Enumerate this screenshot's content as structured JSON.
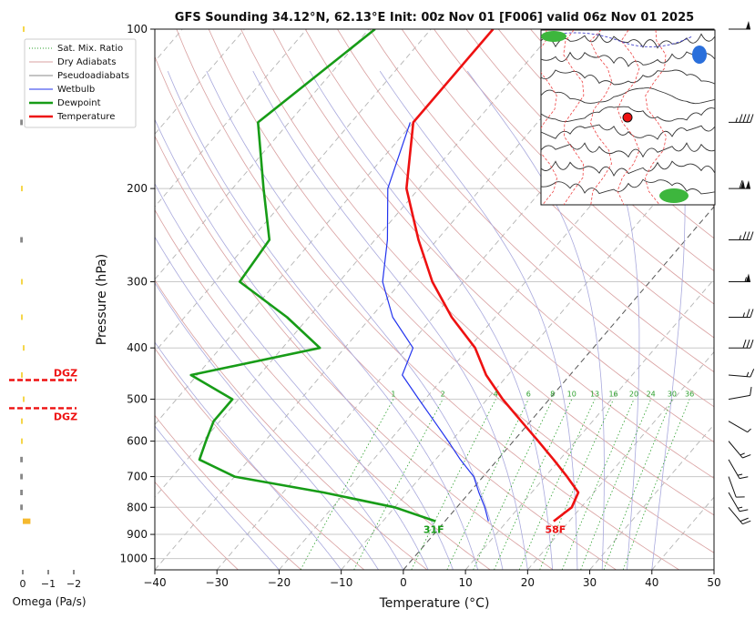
{
  "title": "GFS Sounding 34.12°N, 62.13°E Init: 00z Nov 01 [F006] valid 06z Nov 01 2025",
  "colors": {
    "temperature": "#ee1111",
    "dewpoint": "#179c17",
    "wetbulb": "#2233ee",
    "dry_adiabat": "#d9a0a0",
    "pseudoadiabat": "#a9a9dd",
    "mixing_ratio": "#2ca02c",
    "isotherm": "#b4b4b4",
    "dgz": "#ee1111",
    "omega": "#f5b92e"
  },
  "legend": {
    "items": [
      {
        "label": "Sat. Mix. Ratio",
        "style": "dotted",
        "color": "#2ca02c"
      },
      {
        "label": "Dry Adiabats",
        "style": "solid-thin",
        "color": "#d9a0a0"
      },
      {
        "label": "Pseudoadiabats",
        "style": "solid-thin",
        "color": "#8a8a8a"
      },
      {
        "label": "Wetbulb",
        "style": "solid",
        "color": "#2233ee"
      },
      {
        "label": "Dewpoint",
        "style": "thick",
        "color": "#179c17"
      },
      {
        "label": "Temperature",
        "style": "thick",
        "color": "#ee1111"
      }
    ]
  },
  "labels": {
    "surface_dewpoint": "31F",
    "surface_temperature": "58F",
    "dgz_top": "DGZ",
    "dgz_bottom": "DGZ",
    "omega_axis": "Omega (Pa/s)"
  },
  "omega_ticks": [
    "0",
    "−1",
    "−2"
  ],
  "mixing_ratio_labels": [
    "1",
    "2",
    "4",
    "6",
    "8",
    "10",
    "13",
    "16",
    "20",
    "24",
    "30",
    "36"
  ],
  "chart_data": {
    "type": "line",
    "xlabel": "Temperature (°C)",
    "ylabel": "Pressure (hPa)",
    "xlim": [
      -40,
      50
    ],
    "ylim": [
      1050,
      100
    ],
    "yscale": "log",
    "x_ticks": [
      -40,
      -30,
      -20,
      -10,
      0,
      10,
      20,
      30,
      40,
      50
    ],
    "x_tick_labels": [
      "−40",
      "−30",
      "−20",
      "−10",
      "0",
      "10",
      "20",
      "30",
      "40",
      "50"
    ],
    "y_ticks": [
      100,
      200,
      300,
      400,
      500,
      600,
      700,
      800,
      900,
      1000
    ],
    "y_tick_labels": [
      "100",
      "200",
      "300",
      "400",
      "500",
      "600",
      "700",
      "800",
      "900",
      "1000"
    ],
    "grid": true,
    "legend_position": "top-left",
    "series": [
      {
        "name": "Temperature",
        "pressure": [
          850,
          800,
          750,
          700,
          650,
          600,
          550,
          500,
          450,
          400,
          350,
          300,
          250,
          200,
          150,
          100
        ],
        "temperature": [
          17.5,
          18.5,
          17.5,
          13.5,
          9.0,
          4.0,
          -1.5,
          -7.5,
          -13.5,
          -19.0,
          -27.0,
          -35.0,
          -43.0,
          -52.0,
          -60.0,
          -60.0
        ]
      },
      {
        "name": "Dewpoint",
        "pressure": [
          850,
          800,
          750,
          700,
          650,
          600,
          550,
          500,
          450,
          400,
          350,
          300,
          250,
          200,
          150,
          100
        ],
        "temperature": [
          -1.5,
          -10.0,
          -23.5,
          -40.0,
          -48.0,
          -49.5,
          -51.0,
          -51.0,
          -61.0,
          -44.0,
          -53.5,
          -66.0,
          -67.0,
          -75.0,
          -85.0,
          -79.0
        ]
      },
      {
        "name": "Wetbulb",
        "pressure": [
          850,
          800,
          750,
          700,
          650,
          600,
          550,
          500,
          450,
          400,
          350,
          300,
          250,
          200,
          150
        ],
        "temperature": [
          7.0,
          4.5,
          1.5,
          -1.5,
          -6.0,
          -10.5,
          -15.5,
          -21.0,
          -27.0,
          -29.0,
          -36.5,
          -43.0,
          -48.0,
          -55.0,
          -60.5
        ]
      }
    ],
    "omega": {
      "pressure": [
        850,
        800,
        750,
        700,
        650,
        600,
        550,
        500,
        450,
        400,
        350,
        300,
        250,
        200,
        150,
        100
      ],
      "values": [
        -0.3,
        0.1,
        0.1,
        0.1,
        0.1,
        0.05,
        0.05,
        -0.05,
        0,
        -0.05,
        0,
        0,
        0.1,
        0,
        0.1,
        -0.05
      ]
    },
    "dgz_pressure": [
      460,
      520
    ],
    "wind_barbs": {
      "pressure": [
        100,
        150,
        200,
        250,
        300,
        350,
        400,
        450,
        500,
        550,
        600,
        650,
        700,
        750,
        800
      ],
      "speed_kt": [
        50,
        45,
        110,
        35,
        55,
        25,
        30,
        15,
        10,
        5,
        15,
        15,
        10,
        15,
        20
      ],
      "direction_deg": [
        270,
        270,
        270,
        270,
        270,
        270,
        270,
        275,
        260,
        300,
        320,
        330,
        340,
        330,
        320
      ]
    }
  }
}
